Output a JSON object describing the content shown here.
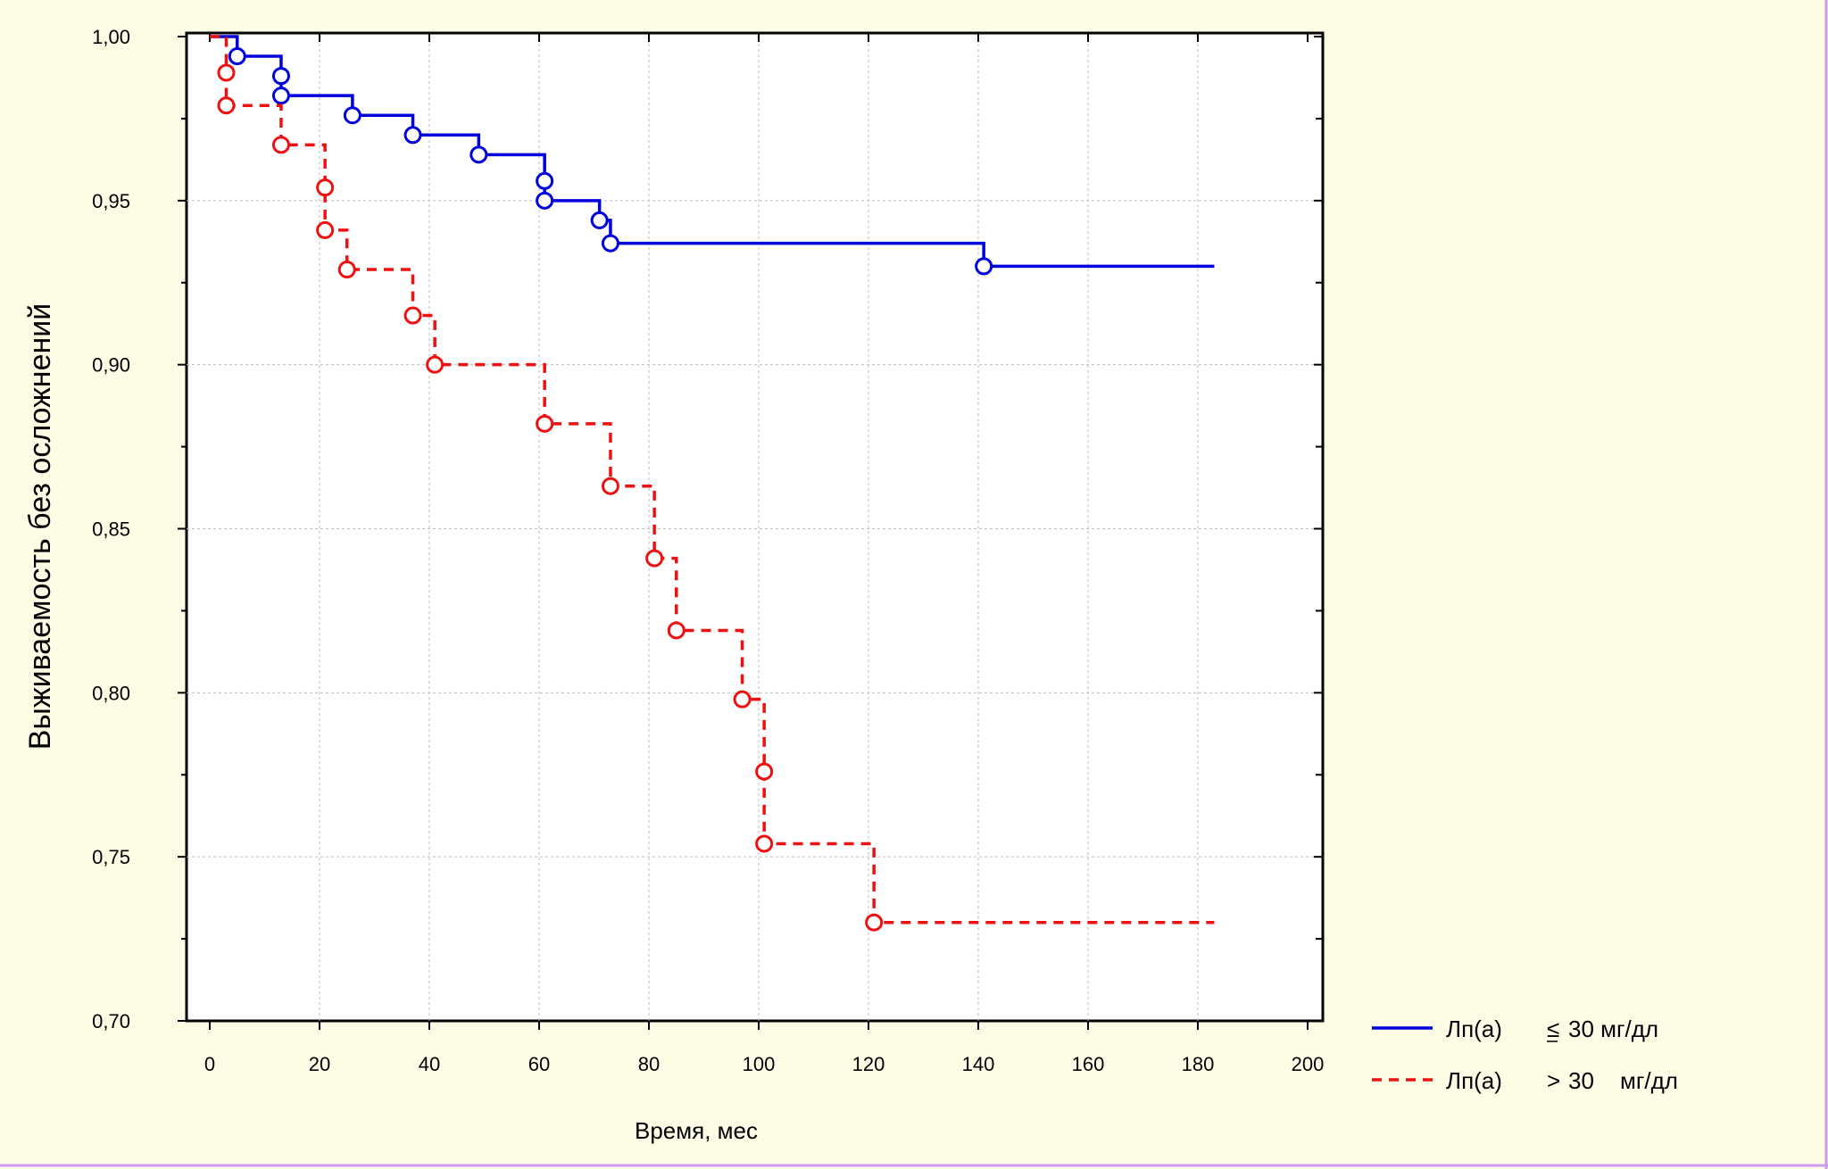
{
  "chart_data": {
    "type": "line",
    "subtype": "kaplan-meier step survival curve",
    "xlabel": "Время, мес",
    "ylabel": "Выживаемость без осложнений",
    "xlim": [
      0,
      200
    ],
    "ylim": [
      0.7,
      1.0
    ],
    "x_ticks": [
      "0",
      "20",
      "40",
      "60",
      "80",
      "100",
      "120",
      "140",
      "160",
      "180",
      "200"
    ],
    "y_ticks": [
      "0,70",
      "0,75",
      "0,80",
      "0,85",
      "0,90",
      "0,95",
      "1,00"
    ],
    "grid": true,
    "legend_position": "bottom-right, outside plot",
    "series": [
      {
        "legend": {
          "label": "Лп(а)",
          "operator": "≤",
          "value": "30 мг/дл"
        },
        "color": "#0000dd",
        "line_style": "solid",
        "steps": [
          [
            0,
            1.0
          ],
          [
            5,
            0.994
          ],
          [
            13,
            0.982
          ],
          [
            26,
            0.976
          ],
          [
            37,
            0.97
          ],
          [
            49,
            0.964
          ],
          [
            61,
            0.95
          ],
          [
            71,
            0.944
          ],
          [
            73,
            0.937
          ],
          [
            141,
            0.93
          ],
          [
            183,
            0.93
          ]
        ],
        "markers": [
          [
            5,
            0.994
          ],
          [
            13,
            0.988
          ],
          [
            13,
            0.982
          ],
          [
            26,
            0.976
          ],
          [
            37,
            0.97
          ],
          [
            49,
            0.964
          ],
          [
            61,
            0.956
          ],
          [
            61,
            0.95
          ],
          [
            71,
            0.944
          ],
          [
            73,
            0.937
          ],
          [
            141,
            0.93
          ]
        ]
      },
      {
        "legend": {
          "label": "Лп(а)",
          "operator": ">",
          "value": "30",
          "unit": "мг/дл"
        },
        "color": "#ee1111",
        "line_style": "dashed",
        "steps": [
          [
            0,
            1.0
          ],
          [
            3,
            0.979
          ],
          [
            13,
            0.967
          ],
          [
            21,
            0.941
          ],
          [
            25,
            0.929
          ],
          [
            37,
            0.915
          ],
          [
            41,
            0.9
          ],
          [
            61,
            0.882
          ],
          [
            73,
            0.863
          ],
          [
            81,
            0.841
          ],
          [
            85,
            0.819
          ],
          [
            97,
            0.798
          ],
          [
            101,
            0.754
          ],
          [
            121,
            0.73
          ],
          [
            183,
            0.73
          ]
        ],
        "markers": [
          [
            3,
            0.989
          ],
          [
            3,
            0.979
          ],
          [
            13,
            0.967
          ],
          [
            21,
            0.954
          ],
          [
            21,
            0.941
          ],
          [
            25,
            0.929
          ],
          [
            37,
            0.915
          ],
          [
            41,
            0.9
          ],
          [
            61,
            0.882
          ],
          [
            73,
            0.863
          ],
          [
            81,
            0.841
          ],
          [
            85,
            0.819
          ],
          [
            97,
            0.798
          ],
          [
            101,
            0.776
          ],
          [
            101,
            0.754
          ],
          [
            121,
            0.73
          ]
        ]
      }
    ]
  }
}
